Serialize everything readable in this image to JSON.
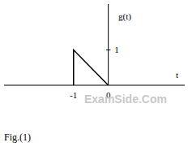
{
  "chart_data": {
    "type": "line",
    "x_label": "t",
    "y_label": "g(t)",
    "x": [
      -1,
      -1,
      0
    ],
    "values": [
      0,
      1,
      0
    ],
    "color": "#000000",
    "xlim": [
      -3,
      2.2
    ],
    "ylim": [
      0,
      2.3
    ],
    "xticks": [
      -1,
      0
    ],
    "yticks": [
      1
    ],
    "grid": false,
    "annotations": [
      "ExamSide.Com"
    ],
    "caption": "Fig.(1)"
  }
}
